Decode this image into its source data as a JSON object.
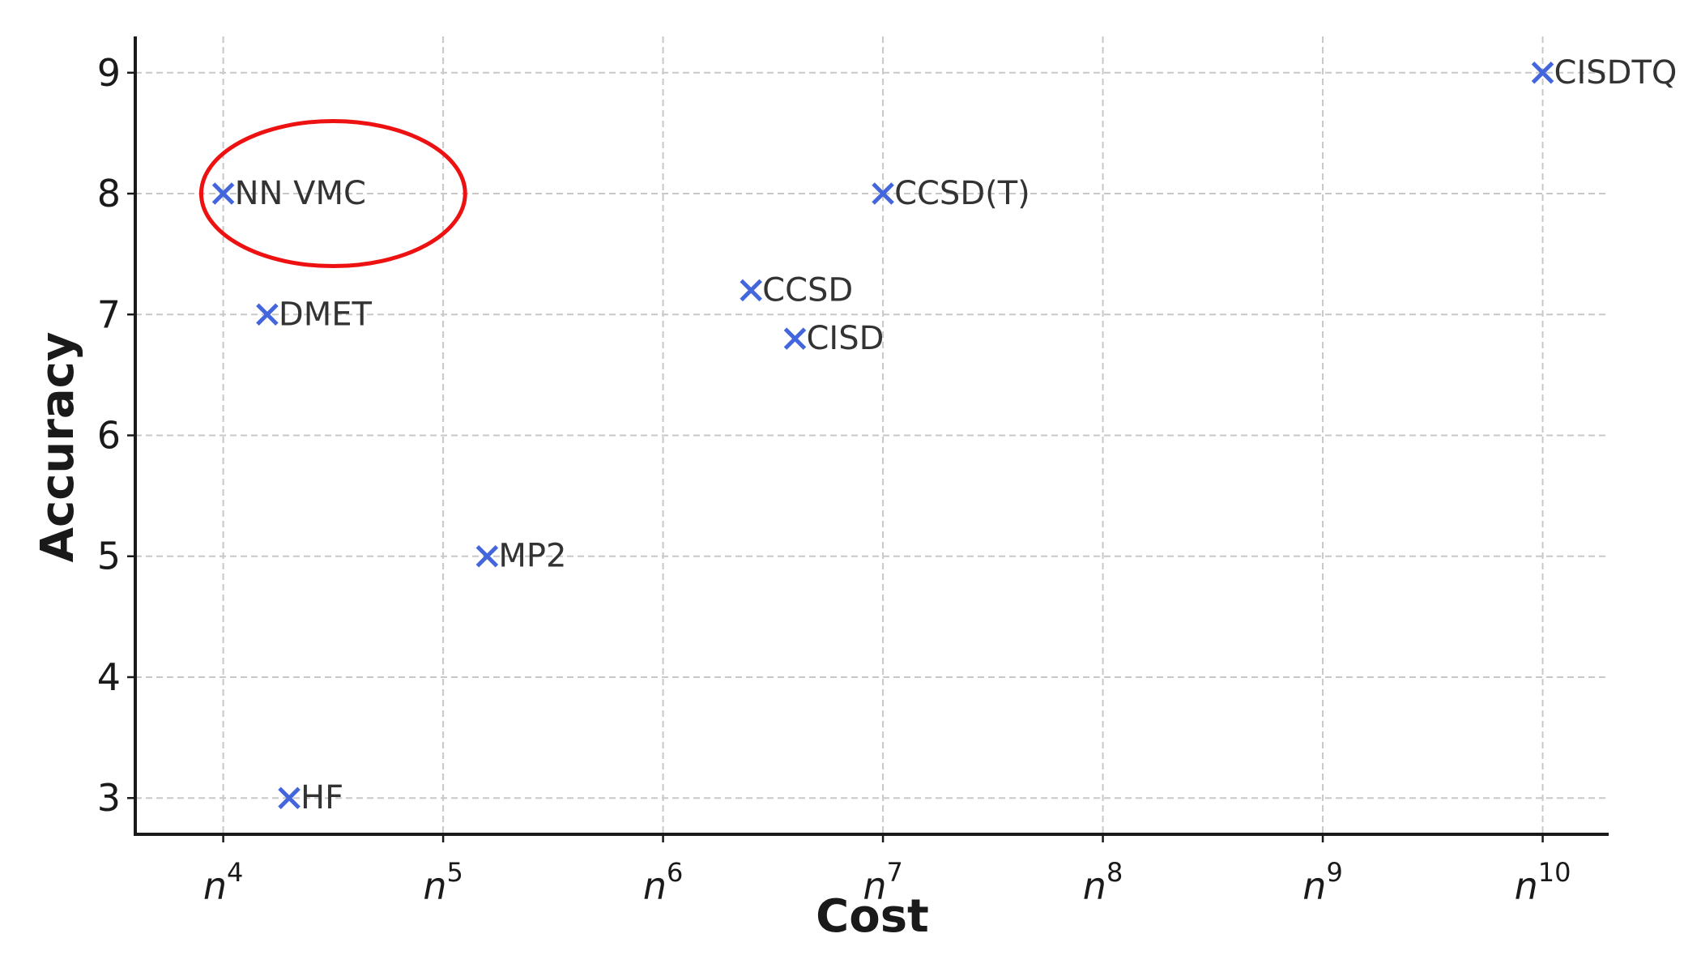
{
  "chart_data": {
    "type": "scatter",
    "title": "",
    "xlabel": "Cost",
    "ylabel": "Accuracy",
    "x_tick_base": "n",
    "x_ticks": [
      "4",
      "5",
      "6",
      "7",
      "8",
      "9",
      "10"
    ],
    "y_ticks": [
      "3",
      "4",
      "5",
      "6",
      "7",
      "8",
      "9"
    ],
    "xlim": [
      3.6,
      10.3
    ],
    "ylim": [
      2.7,
      9.3
    ],
    "grid": true,
    "marker": "x",
    "marker_color": "#4466dd",
    "highlight_color": "#ee1111",
    "points": [
      {
        "label": "NN VMC",
        "x": 4.0,
        "y": 8.0
      },
      {
        "label": "DMET",
        "x": 4.2,
        "y": 7.0
      },
      {
        "label": "HF",
        "x": 4.3,
        "y": 3.0
      },
      {
        "label": "MP2",
        "x": 5.2,
        "y": 5.0
      },
      {
        "label": "CCSD",
        "x": 6.4,
        "y": 7.2
      },
      {
        "label": "CISD",
        "x": 6.6,
        "y": 6.8
      },
      {
        "label": "CCSD(T)",
        "x": 7.0,
        "y": 8.0
      },
      {
        "label": "CISDTQ",
        "x": 10.0,
        "y": 9.0
      }
    ],
    "highlight": {
      "label": "NN VMC",
      "cx": 4.5,
      "cy": 8.0,
      "rx": 0.6,
      "ry": 0.6
    }
  }
}
